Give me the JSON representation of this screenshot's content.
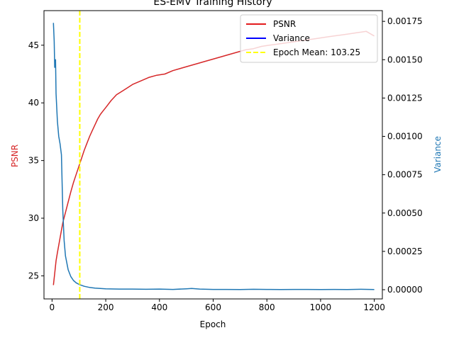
{
  "chart_data": {
    "type": "line",
    "title": "ES-EMV Training History",
    "xlabel": "Epoch",
    "ylabel_left": "PSNR",
    "ylabel_right": "Variance",
    "xlim": [
      -30,
      1230
    ],
    "ylim_left": [
      23.0,
      48.0
    ],
    "ylim_right": [
      -6e-05,
      0.00182
    ],
    "x_ticks": [
      0,
      200,
      400,
      600,
      800,
      1000,
      1200
    ],
    "y_left_ticks": [
      25,
      30,
      35,
      40,
      45
    ],
    "y_right_ticks": [
      "0.00000",
      "0.00025",
      "0.00050",
      "0.00075",
      "0.00100",
      "0.00125",
      "0.00150",
      "0.00175"
    ],
    "legend_position": "top-right",
    "grid": false,
    "legend": [
      {
        "label": "PSNR",
        "color": "#e31a1c",
        "style": "solid"
      },
      {
        "label": "Variance",
        "color": "#0000ff",
        "style": "solid"
      },
      {
        "label": "Epoch Mean: 103.25",
        "color": "#ffff00",
        "style": "dashed"
      }
    ],
    "vline": {
      "x": 103.25,
      "color": "#ffff00"
    },
    "series": [
      {
        "name": "PSNR",
        "axis": "left",
        "color": "#d62728",
        "x": [
          5,
          10,
          15,
          20,
          30,
          40,
          50,
          60,
          70,
          80,
          90,
          100,
          110,
          120,
          130,
          140,
          150,
          160,
          170,
          180,
          190,
          200,
          220,
          240,
          260,
          280,
          300,
          330,
          360,
          390,
          420,
          450,
          480,
          510,
          540,
          570,
          600,
          630,
          660,
          690,
          720,
          750,
          780,
          810,
          840,
          870,
          900,
          930,
          960,
          990,
          1020,
          1050,
          1080,
          1110,
          1140,
          1170,
          1200
        ],
        "values": [
          24.2,
          25.2,
          26.3,
          27.0,
          28.3,
          29.6,
          30.5,
          31.4,
          32.3,
          33.1,
          33.8,
          34.5,
          35.2,
          35.9,
          36.5,
          37.1,
          37.6,
          38.1,
          38.6,
          39.0,
          39.3,
          39.6,
          40.2,
          40.7,
          41.0,
          41.3,
          41.6,
          41.9,
          42.2,
          42.4,
          42.5,
          42.8,
          43.0,
          43.2,
          43.4,
          43.6,
          43.8,
          44.0,
          44.2,
          44.4,
          44.6,
          44.7,
          44.9,
          45.0,
          45.1,
          45.2,
          45.3,
          45.4,
          45.5,
          45.6,
          45.7,
          45.8,
          45.9,
          46.0,
          46.1,
          46.2,
          45.8
        ]
      },
      {
        "name": "Variance",
        "axis": "right",
        "color": "#1f77b4",
        "x": [
          5,
          8,
          10,
          13,
          15,
          20,
          25,
          30,
          35,
          40,
          45,
          50,
          60,
          70,
          80,
          90,
          100,
          120,
          140,
          160,
          180,
          200,
          250,
          300,
          350,
          400,
          450,
          500,
          520,
          550,
          600,
          650,
          700,
          750,
          800,
          850,
          900,
          950,
          1000,
          1050,
          1100,
          1150,
          1200
        ],
        "values": [
          0.00174,
          0.00162,
          0.00145,
          0.0015,
          0.00128,
          0.0011,
          0.001,
          0.00095,
          0.00088,
          0.00052,
          0.00032,
          0.00022,
          0.00013,
          8.5e-05,
          6e-05,
          4.5e-05,
          3.5e-05,
          2.2e-05,
          1.5e-05,
          1e-05,
          8e-06,
          6e-06,
          4e-06,
          4e-06,
          3e-06,
          4e-06,
          2e-06,
          6e-06,
          8e-06,
          4e-06,
          2e-06,
          2e-06,
          1e-06,
          3e-06,
          2e-06,
          1e-06,
          2e-06,
          2e-06,
          1e-06,
          2e-06,
          1e-06,
          3e-06,
          1e-06
        ]
      }
    ]
  }
}
